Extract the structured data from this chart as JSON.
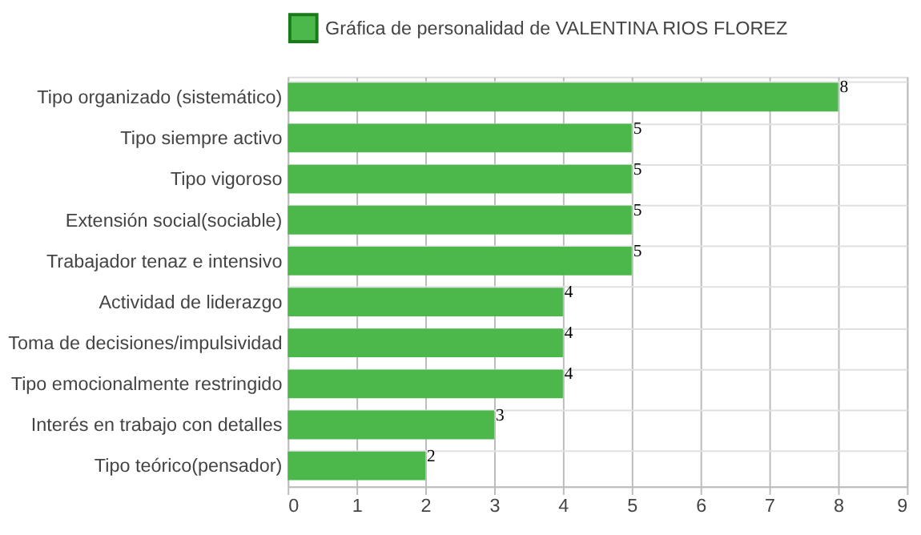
{
  "chart_data": {
    "type": "bar",
    "orientation": "horizontal",
    "categories": [
      "Tipo organizado (sistemático)",
      "Tipo siempre activo",
      "Tipo vigoroso",
      "Extensión social(sociable)",
      "Trabajador tenaz e intensivo",
      "Actividad de liderazgo",
      "Toma de decisiones/impulsividad",
      "Tipo emocionalmente restringido",
      "Interés en trabajo con detalles",
      "Tipo teórico(pensador)"
    ],
    "series": [
      {
        "name": "Gráfica de personalidad de VALENTINA RIOS FLOREZ",
        "color": "#4cb84c",
        "values": [
          8,
          5,
          5,
          5,
          5,
          4,
          4,
          4,
          3,
          2
        ]
      }
    ],
    "xlim": [
      0,
      9
    ],
    "xticks": [
      0,
      1,
      2,
      3,
      4,
      5,
      6,
      7,
      8,
      9
    ],
    "grid": true,
    "legend": "top",
    "data_labels": true
  }
}
